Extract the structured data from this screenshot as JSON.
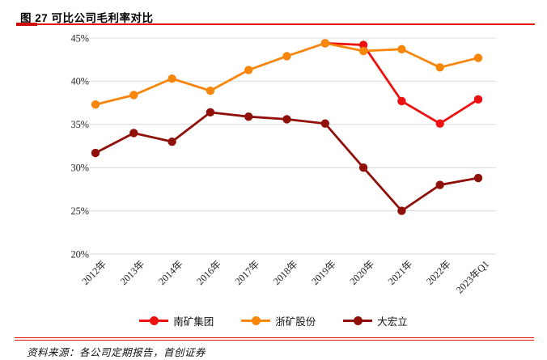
{
  "title": {
    "label": "图 27 可比公司毛利率对比"
  },
  "chart_data": {
    "type": "line",
    "categories": [
      "2012年",
      "2013年",
      "2014年",
      "2016年",
      "2017年",
      "2018年",
      "2019年",
      "2020年",
      "2021年",
      "2022年",
      "2023年Q1"
    ],
    "series": [
      {
        "name": "南矿集团",
        "color": "#ee1111",
        "values": [
          null,
          null,
          null,
          null,
          null,
          null,
          44.4,
          44.2,
          37.7,
          35.1,
          37.9
        ]
      },
      {
        "name": "浙矿股份",
        "color": "#f8860b",
        "values": [
          37.3,
          38.4,
          40.3,
          38.9,
          41.3,
          42.9,
          44.4,
          43.5,
          43.7,
          41.6,
          42.7
        ]
      },
      {
        "name": "大宏立",
        "color": "#8f100a",
        "values": [
          31.7,
          34.0,
          33.0,
          36.4,
          35.9,
          35.6,
          35.1,
          30.0,
          25.0,
          28.0,
          28.8
        ]
      }
    ],
    "title": "",
    "xlabel": "",
    "ylabel": "",
    "ylim": [
      20,
      45
    ],
    "yticks": [
      "45%",
      "40%",
      "35%",
      "30%",
      "25%",
      "20%"
    ],
    "grid": "horizontal",
    "legend_position": "bottom",
    "marker": "circle"
  },
  "footer": {
    "label": "资料来源：各公司定期报告，首创证券"
  },
  "colors": {
    "rule_red": "#e8120e",
    "gridline": "#dcdcdc",
    "tick_text": "#262626"
  }
}
